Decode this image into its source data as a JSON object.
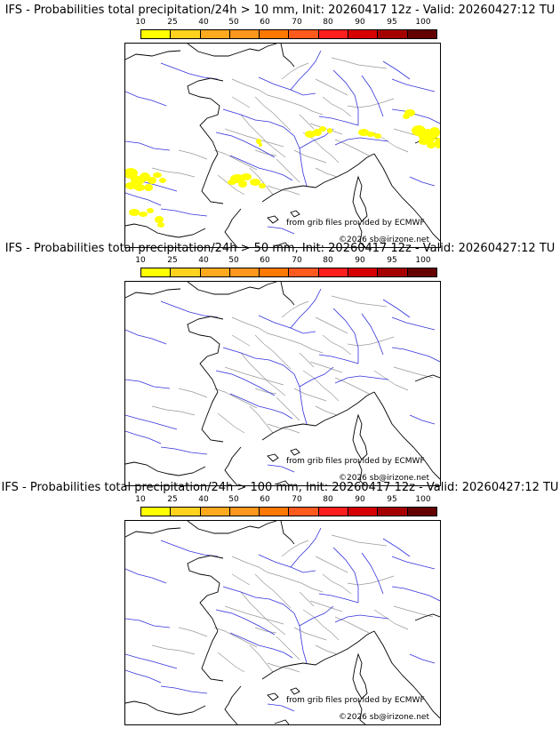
{
  "panels": [
    {
      "title": "IFS - Probabilities total precipitation/24h > 10 mm, Init: 20260417 12z - Valid: 20260427:12 TU",
      "has_precip": true
    },
    {
      "title": "IFS - Probabilities total precipitation/24h > 50 mm, Init: 20260417 12z - Valid: 20260427:12 TU",
      "has_precip": false
    },
    {
      "title": "IFS - Probabilities total precipitation/24h > 100 mm, Init: 20260417 12z - Valid: 20260427:12 TU",
      "has_precip": false
    }
  ],
  "legend": {
    "labels": [
      "10",
      "25",
      "40",
      "50",
      "60",
      "70",
      "80",
      "90",
      "95",
      "100"
    ],
    "colors": [
      "#ffff00",
      "#ffd21e",
      "#ffaa1e",
      "#ff961e",
      "#ff7800",
      "#ff5a1e",
      "#ff1e1e",
      "#d70000",
      "#a50000",
      "#640000"
    ]
  },
  "credits": {
    "source": "from grib files provided by ECMWF",
    "copyright": "©2026 sb@irizone.net"
  },
  "precip_color": "#ffff00",
  "coast_color": "#000000",
  "river_color": "#3333dd",
  "border_color": "#999999"
}
